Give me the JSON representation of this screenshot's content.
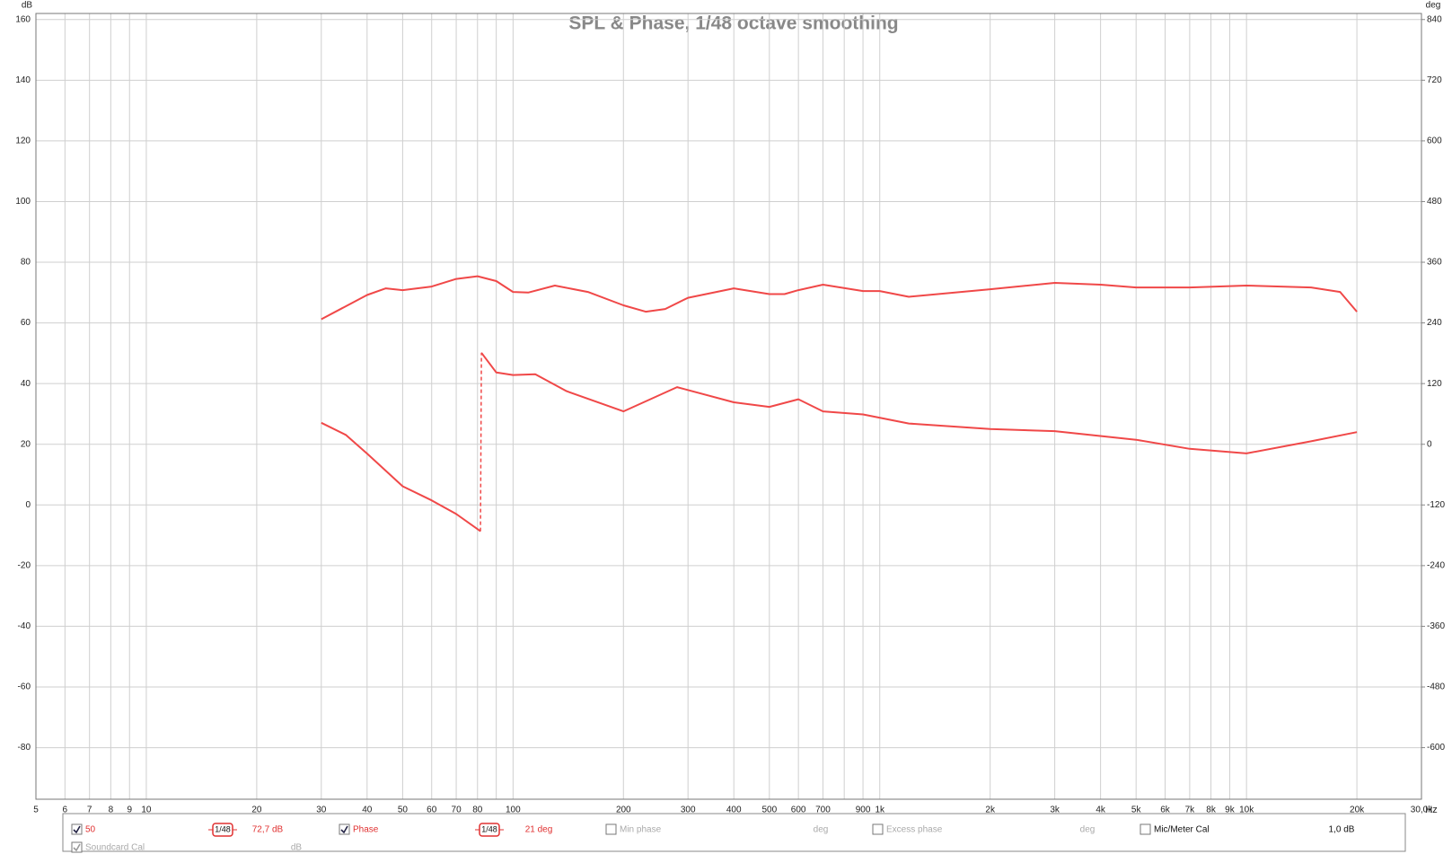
{
  "chart_data": {
    "type": "line",
    "title": "SPL & Phase, 1/48 octave smoothing",
    "ylabel": "dB",
    "y2label": "deg",
    "xlabel": "Hz",
    "xscale": "log",
    "xlim": [
      5,
      30000
    ],
    "xticks": [
      5,
      6,
      7,
      8,
      9,
      10,
      20,
      30,
      40,
      50,
      60,
      70,
      80,
      100,
      200,
      300,
      400,
      500,
      600,
      700,
      900,
      {
        "value": 1000,
        "label": "1k"
      },
      {
        "value": 2000,
        "label": "2k"
      },
      {
        "value": 3000,
        "label": "3k"
      },
      {
        "value": 4000,
        "label": "4k"
      },
      {
        "value": 5000,
        "label": "5k"
      },
      {
        "value": 6000,
        "label": "6k"
      },
      {
        "value": 7000,
        "label": "7k"
      },
      {
        "value": 8000,
        "label": "8k"
      },
      {
        "value": 9000,
        "label": "9k"
      },
      {
        "value": 10000,
        "label": "10k"
      },
      {
        "value": 20000,
        "label": "20k"
      },
      {
        "value": 30000,
        "label": "30,0k"
      }
    ],
    "xminor": [
      90,
      800
    ],
    "ylim": [
      -97,
      162
    ],
    "yticks": [
      -80,
      -60,
      -40,
      -20,
      0,
      20,
      40,
      60,
      80,
      100,
      120,
      140,
      160
    ],
    "y2lim": [
      -702,
      852
    ],
    "y2ticks": [
      -600,
      -480,
      -360,
      -240,
      -120,
      0,
      120,
      240,
      360,
      480,
      600,
      720,
      840
    ],
    "grid": true,
    "series": [
      {
        "name": "50",
        "color": "#f04848",
        "x": [
          30,
          40,
          45,
          50,
          60,
          70,
          80,
          90,
          100,
          110,
          130,
          160,
          200,
          230,
          260,
          300,
          400,
          500,
          550,
          600,
          700,
          900,
          1000,
          1200,
          2000,
          3000,
          4000,
          5000,
          7000,
          10000,
          15000,
          18000,
          20000
        ],
        "values": [
          61.2,
          69.2,
          71.4,
          70.8,
          72,
          74.5,
          75.4,
          73.8,
          70.2,
          70,
          72.3,
          70.2,
          65.8,
          63.7,
          64.6,
          68.3,
          71.4,
          69.5,
          69.5,
          70.8,
          72.6,
          70.5,
          70.5,
          68.6,
          71.1,
          73.2,
          72.6,
          71.7,
          71.7,
          72.3,
          71.7,
          70.2,
          63.7
        ]
      },
      {
        "name": "Phase",
        "color": "#f04848",
        "axis": "y2",
        "x": [
          30,
          35,
          40,
          50,
          60,
          70,
          81.5,
          82,
          82,
          90,
          100,
          115,
          140,
          200,
          280,
          400,
          500,
          600,
          700,
          900,
          1200,
          2000,
          3000,
          5000,
          7000,
          10000,
          15000,
          20000
        ],
        "values": [
          42.5,
          18.5,
          -18.5,
          -83,
          -111,
          -138,
          -172,
          null,
          181,
          142,
          137,
          138.5,
          105,
          65,
          113,
          83,
          74,
          89,
          65,
          59,
          41,
          30,
          26,
          9,
          -9,
          -18,
          6,
          24
        ]
      }
    ]
  },
  "legend_panel": {
    "items": [
      {
        "label": "50",
        "checked": true,
        "smoothing": "1/48",
        "readout": "72,7 dB"
      },
      {
        "label": "Phase",
        "checked": true,
        "smoothing": "1/48",
        "readout": "21 deg"
      },
      {
        "label": "Min phase",
        "checked": false,
        "readout": "deg"
      },
      {
        "label": "Excess phase",
        "checked": false,
        "readout": "deg"
      },
      {
        "label": "Mic/Meter Cal",
        "checked": false,
        "readout": "1,0 dB"
      },
      {
        "label": "Soundcard Cal",
        "checked": true,
        "readout": "dB"
      }
    ]
  }
}
